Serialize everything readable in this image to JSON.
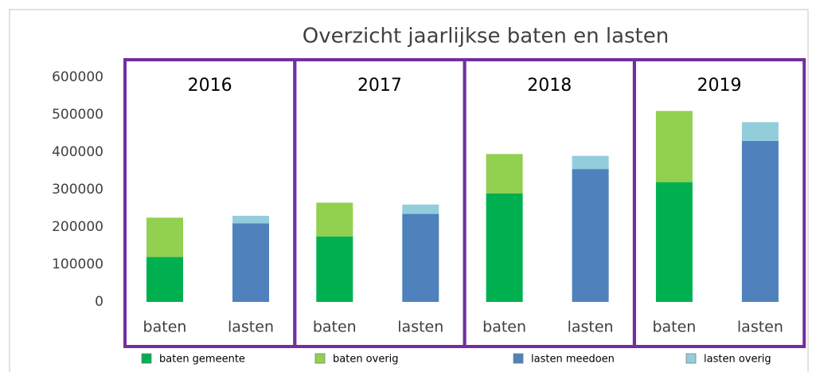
{
  "chart_data": {
    "type": "stacked_bar",
    "title": "Overzicht jaarlijkse baten en lasten",
    "groups": [
      "2016",
      "2017",
      "2018",
      "2019"
    ],
    "categories": [
      "baten",
      "lasten",
      "baten",
      "lasten",
      "baten",
      "lasten",
      "baten",
      "lasten"
    ],
    "series": [
      {
        "name": "baten gemeente",
        "color": "#00b050",
        "values": [
          120000,
          null,
          175000,
          null,
          290000,
          null,
          320000,
          null
        ]
      },
      {
        "name": "baten overig",
        "color": "#92d050",
        "values": [
          105000,
          null,
          90000,
          null,
          105000,
          null,
          190000,
          null
        ]
      },
      {
        "name": "lasten meedoen",
        "color": "#4f81bd",
        "values": [
          null,
          210000,
          null,
          235000,
          null,
          355000,
          null,
          430000
        ]
      },
      {
        "name": "lasten overig",
        "color": "#92cddc",
        "values": [
          null,
          20000,
          null,
          25000,
          null,
          35000,
          null,
          50000
        ]
      }
    ],
    "ylim": [
      0,
      600000
    ],
    "yticks": [
      0,
      100000,
      200000,
      300000,
      400000,
      500000,
      600000
    ],
    "grid": false,
    "legend": "bottom"
  }
}
